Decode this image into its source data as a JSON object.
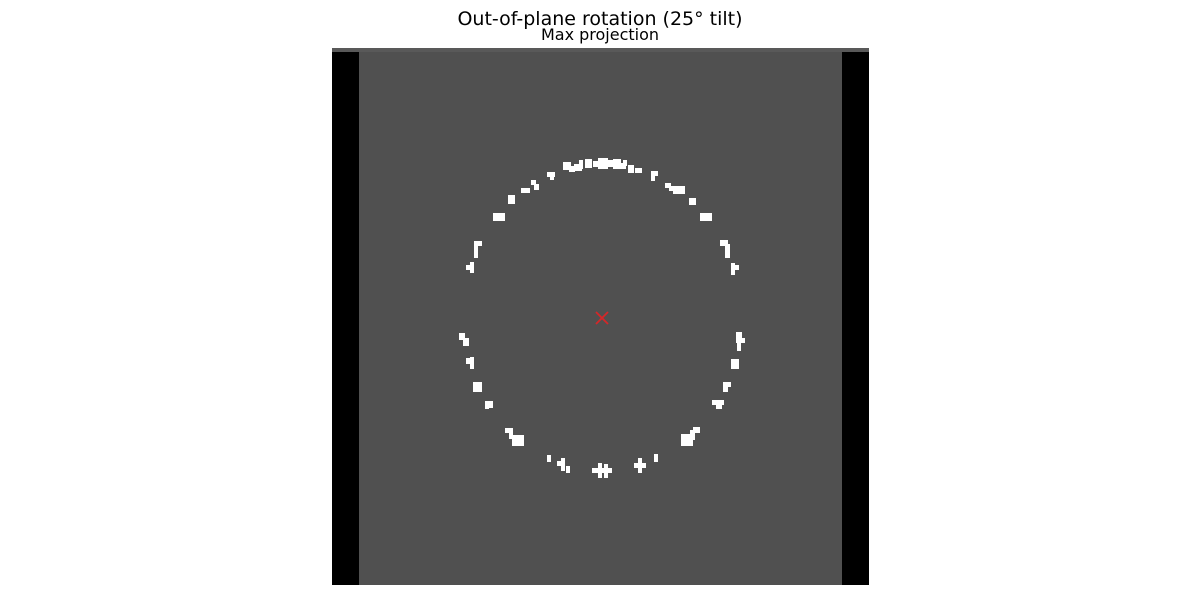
{
  "figure": {
    "title": "Out-of-plane rotation (25° tilt)",
    "subtitle": "Max projection"
  },
  "colors": {
    "background": "#ffffff",
    "frame": "#595959",
    "volume": "#505050",
    "padding": "#000000",
    "blob": "#ffffff",
    "center_marker": "#d62728"
  },
  "image": {
    "kind": "max-intensity projection",
    "tilt_degrees": 25,
    "structure": "ring of bright voxel clusters",
    "cluster_count": 34
  },
  "center_marker": {
    "symbol": "x",
    "meaning": "projection center"
  }
}
